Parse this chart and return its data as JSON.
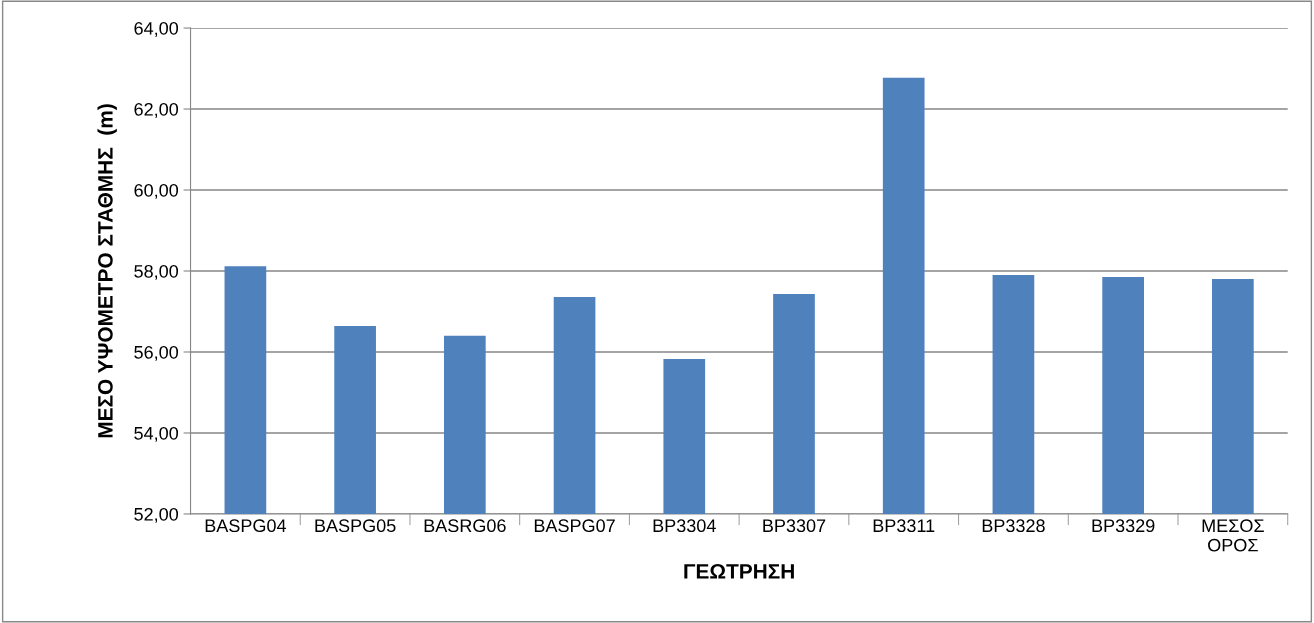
{
  "chart_data": {
    "type": "bar",
    "xlabel": "ΓΕΩΤΡΗΣΗ",
    "ylabel": "ΜΕΣΟ ΥΨΟΜΕΤΡΟ ΣΤΑΘΜΗΣ  (m)",
    "categories": [
      "BASPG04",
      "BASPG05",
      "BASRG06",
      "BASPG07",
      "BP3304",
      "BP3307",
      "BP3311",
      "BP3328",
      "BP3329",
      "ΜΕΣΟΣ ΟΡΟΣ"
    ],
    "values": [
      58.12,
      56.64,
      56.4,
      57.36,
      55.83,
      57.43,
      62.77,
      57.9,
      57.85,
      57.8
    ],
    "color": "#4f81bd",
    "ylim": [
      52,
      64
    ],
    "yticks": [
      {
        "value": 52,
        "label": "52,00"
      },
      {
        "value": 54,
        "label": "54,00"
      },
      {
        "value": 56,
        "label": "56,00"
      },
      {
        "value": 58,
        "label": "58,00"
      },
      {
        "value": 60,
        "label": "60,00"
      },
      {
        "value": 62,
        "label": "62,00"
      },
      {
        "value": 64,
        "label": "64,00"
      }
    ],
    "grid": "y",
    "legend": false
  }
}
